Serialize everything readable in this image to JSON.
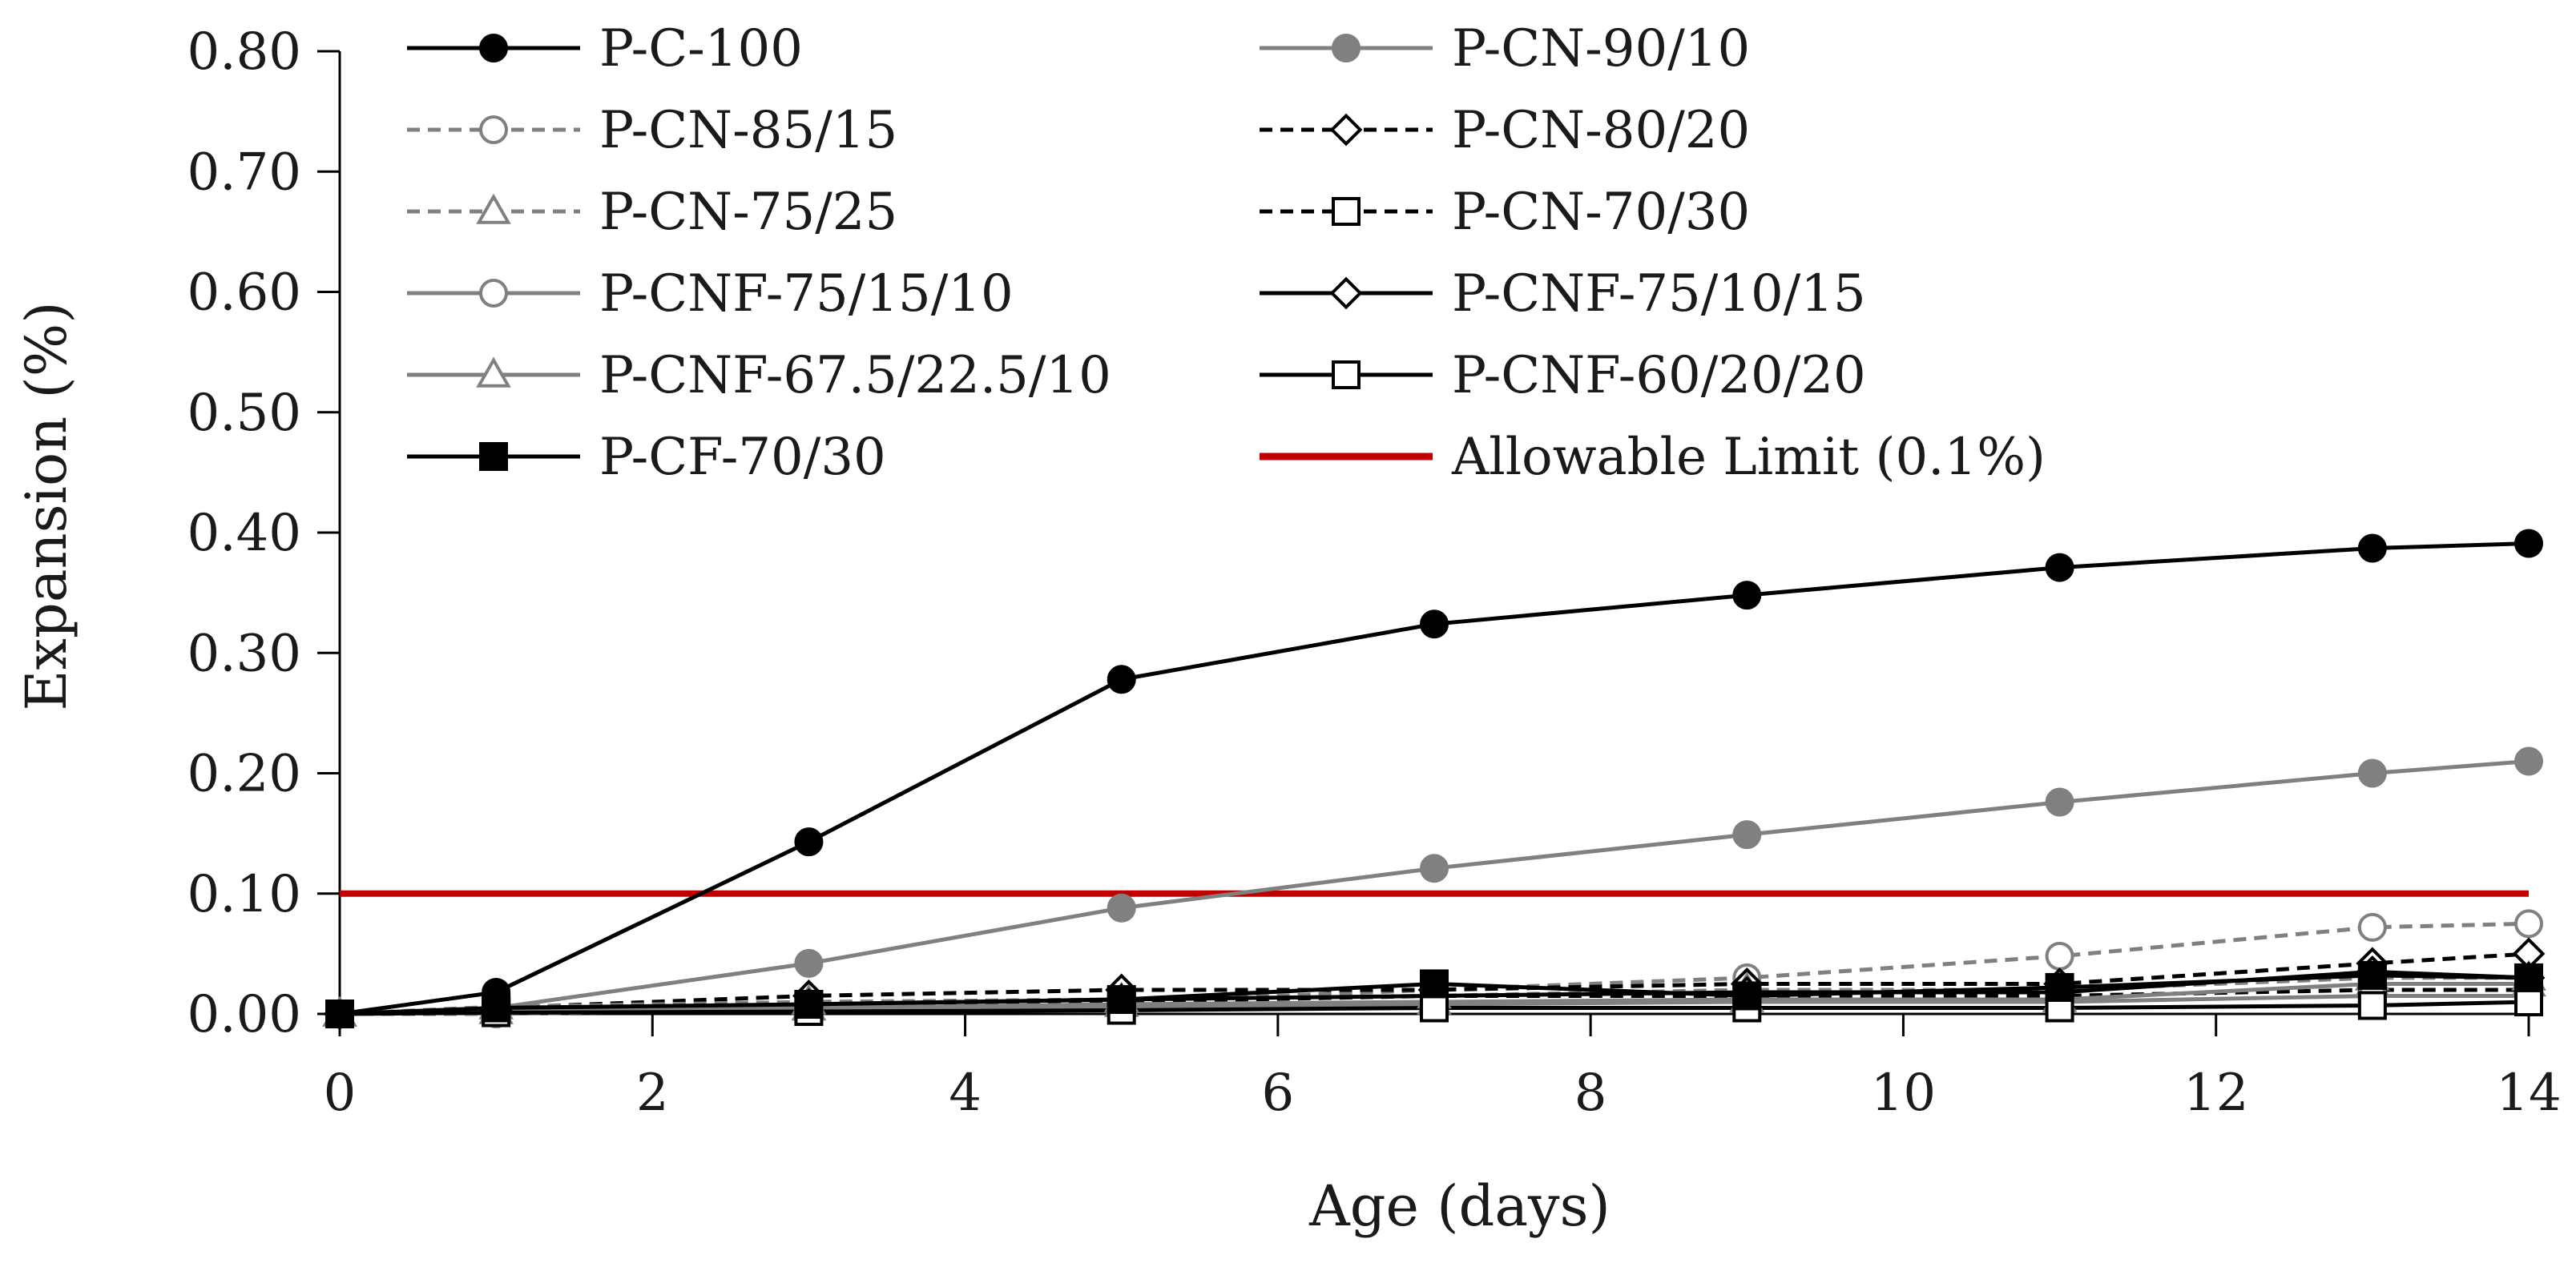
{
  "chart_data": {
    "type": "line",
    "xlabel": "Age (days)",
    "ylabel": "Expansion (%)",
    "xlim": [
      0,
      14
    ],
    "ylim": [
      0,
      0.8
    ],
    "xticks": [
      0,
      2,
      4,
      6,
      8,
      10,
      12,
      14
    ],
    "yticks": [
      0,
      0.1,
      0.2,
      0.3,
      0.4,
      0.5,
      0.6,
      0.7,
      0.8
    ],
    "xtick_labels": [
      "0",
      "2",
      "4",
      "6",
      "8",
      "10",
      "12",
      "14"
    ],
    "ytick_labels": [
      "0.00",
      "0.10",
      "0.20",
      "0.30",
      "0.40",
      "0.50",
      "0.60",
      "0.70",
      "0.80"
    ],
    "grid": false,
    "legend": "top, two columns",
    "x": [
      0,
      1,
      3,
      5,
      7,
      9,
      11,
      13,
      14
    ],
    "series": [
      {
        "name": "P-C-100",
        "color": "#000000",
        "dash": "solid",
        "marker": "circle",
        "fill": "filled",
        "values": [
          0,
          0.018,
          0.143,
          0.278,
          0.324,
          0.348,
          0.371,
          0.387,
          0.391
        ]
      },
      {
        "name": "P-CN-90/10",
        "color": "#808080",
        "dash": "solid",
        "marker": "circle",
        "fill": "filled",
        "values": [
          0,
          0.005,
          0.042,
          0.088,
          0.121,
          0.149,
          0.176,
          0.2,
          0.21
        ]
      },
      {
        "name": "P-CN-85/15",
        "color": "#808080",
        "dash": "dashed",
        "marker": "circle",
        "fill": "open",
        "values": [
          0,
          0.0,
          0.004,
          0.01,
          0.02,
          0.03,
          0.048,
          0.072,
          0.075
        ]
      },
      {
        "name": "P-CN-80/20",
        "color": "#000000",
        "dash": "dashed",
        "marker": "diamond",
        "fill": "open",
        "values": [
          0,
          0.005,
          0.015,
          0.02,
          0.02,
          0.025,
          0.025,
          0.042,
          0.05
        ]
      },
      {
        "name": "P-CN-75/25",
        "color": "#808080",
        "dash": "dashed",
        "marker": "triangle",
        "fill": "open",
        "values": [
          0,
          0.006,
          0.01,
          0.012,
          0.015,
          0.02,
          0.02,
          0.03,
          0.03
        ]
      },
      {
        "name": "P-CN-70/30",
        "color": "#000000",
        "dash": "dashed",
        "marker": "square",
        "fill": "open",
        "values": [
          0,
          0.003,
          0.008,
          0.01,
          0.015,
          0.015,
          0.015,
          0.02,
          0.02
        ]
      },
      {
        "name": "P-CNF-75/15/10",
        "color": "#808080",
        "dash": "solid",
        "marker": "circle",
        "fill": "open",
        "values": [
          0,
          0.002,
          0.005,
          0.006,
          0.008,
          0.01,
          0.01,
          0.015,
          0.015
        ]
      },
      {
        "name": "P-CNF-75/10/15",
        "color": "#000000",
        "dash": "solid",
        "marker": "diamond",
        "fill": "open",
        "values": [
          0,
          0.003,
          0.008,
          0.012,
          0.015,
          0.018,
          0.018,
          0.035,
          0.03
        ]
      },
      {
        "name": "P-CNF-67.5/22.5/10",
        "color": "#808080",
        "dash": "solid",
        "marker": "triangle",
        "fill": "open",
        "values": [
          0,
          0.002,
          0.005,
          0.008,
          0.01,
          0.012,
          0.012,
          0.025,
          0.025
        ]
      },
      {
        "name": "P-CNF-60/20/20",
        "color": "#000000",
        "dash": "solid",
        "marker": "square",
        "fill": "open",
        "values": [
          0,
          0.001,
          0.002,
          0.003,
          0.005,
          0.005,
          0.005,
          0.007,
          0.01
        ]
      },
      {
        "name": "P-CF-70/30",
        "color": "#000000",
        "dash": "solid",
        "marker": "square",
        "fill": "filled",
        "values": [
          0,
          0.005,
          0.008,
          0.012,
          0.025,
          0.015,
          0.022,
          0.032,
          0.03
        ]
      }
    ],
    "reference_lines": [
      {
        "name": "Allowable Limit (0.1%)",
        "color": "#c00000",
        "y": 0.1
      }
    ]
  }
}
